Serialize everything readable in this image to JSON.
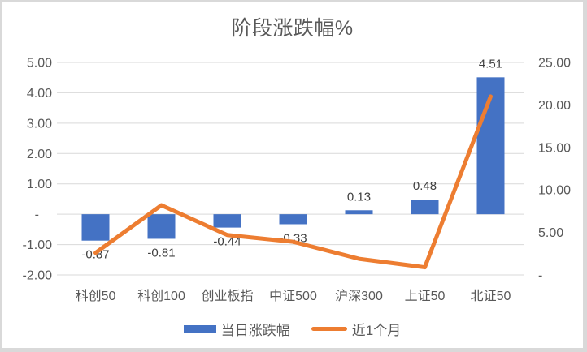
{
  "chart_data": {
    "type": "combo",
    "title": "阶段涨跌幅%",
    "categories": [
      "科创50",
      "科创100",
      "创业板指",
      "中证500",
      "沪深300",
      "上证50",
      "北证50"
    ],
    "series": [
      {
        "name": "当日涨跌幅",
        "type": "bar",
        "axis": "left",
        "color": "#4472C4",
        "values": [
          -0.87,
          -0.81,
          -0.44,
          -0.33,
          0.13,
          0.48,
          4.51
        ],
        "data_labels": [
          "-0.87",
          "-0.81",
          "-0.44",
          "-0.33",
          "0.13",
          "0.48",
          "4.51"
        ]
      },
      {
        "name": "近1个月",
        "type": "line",
        "axis": "right",
        "color": "#ED7D31",
        "values": [
          2.6,
          8.2,
          4.7,
          3.9,
          1.9,
          0.9,
          21.0
        ]
      }
    ],
    "left_axis": {
      "min": -2,
      "max": 5,
      "tick_labels": [
        "5.00",
        "4.00",
        "3.00",
        "2.00",
        "1.00",
        "-",
        "-1.00",
        "-2.00"
      ]
    },
    "right_axis": {
      "min": 0,
      "max": 25,
      "tick_labels": [
        "25.00",
        "20.00",
        "15.00",
        "10.00",
        "5.00",
        "-"
      ]
    },
    "grid": true,
    "legend_position": "bottom"
  },
  "colors": {
    "bar": "#4472C4",
    "line": "#ED7D31",
    "gridline": "#D9D9D9",
    "axis_text": "#595959",
    "category_text": "#595959",
    "data_label_text": "#404040",
    "title_text": "#595959",
    "border": "#D9D9D9",
    "background": "#FFFFFF"
  }
}
